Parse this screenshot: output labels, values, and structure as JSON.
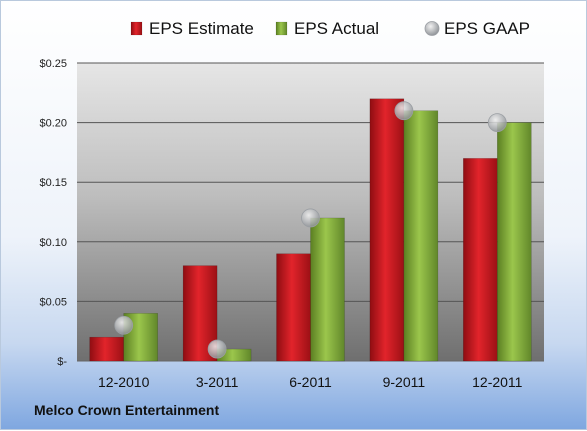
{
  "chart_data": {
    "type": "bar",
    "categories": [
      "12-2010",
      "3-2011",
      "6-2011",
      "9-2011",
      "12-2011"
    ],
    "series": [
      {
        "name": "EPS Estimate",
        "type": "bar",
        "color": "#c8161d",
        "values": [
          0.02,
          0.08,
          0.09,
          0.22,
          0.17
        ]
      },
      {
        "name": "EPS Actual",
        "type": "bar",
        "color": "#86b33c",
        "values": [
          0.04,
          0.01,
          0.12,
          0.21,
          0.2
        ]
      },
      {
        "name": "EPS GAAP",
        "type": "scatter",
        "color": "#c0c4c8",
        "values": [
          0.03,
          0.01,
          0.12,
          0.21,
          0.2
        ]
      }
    ],
    "ylim": [
      0,
      0.25
    ],
    "yticks": [
      0,
      0.05,
      0.1,
      0.15,
      0.2,
      0.25
    ],
    "ytick_labels": [
      "$-",
      "$0.05",
      "$0.10",
      "$0.15",
      "$0.20",
      "$0.25"
    ],
    "grid": true,
    "legend": "top"
  },
  "company": "Melco Crown Entertainment"
}
